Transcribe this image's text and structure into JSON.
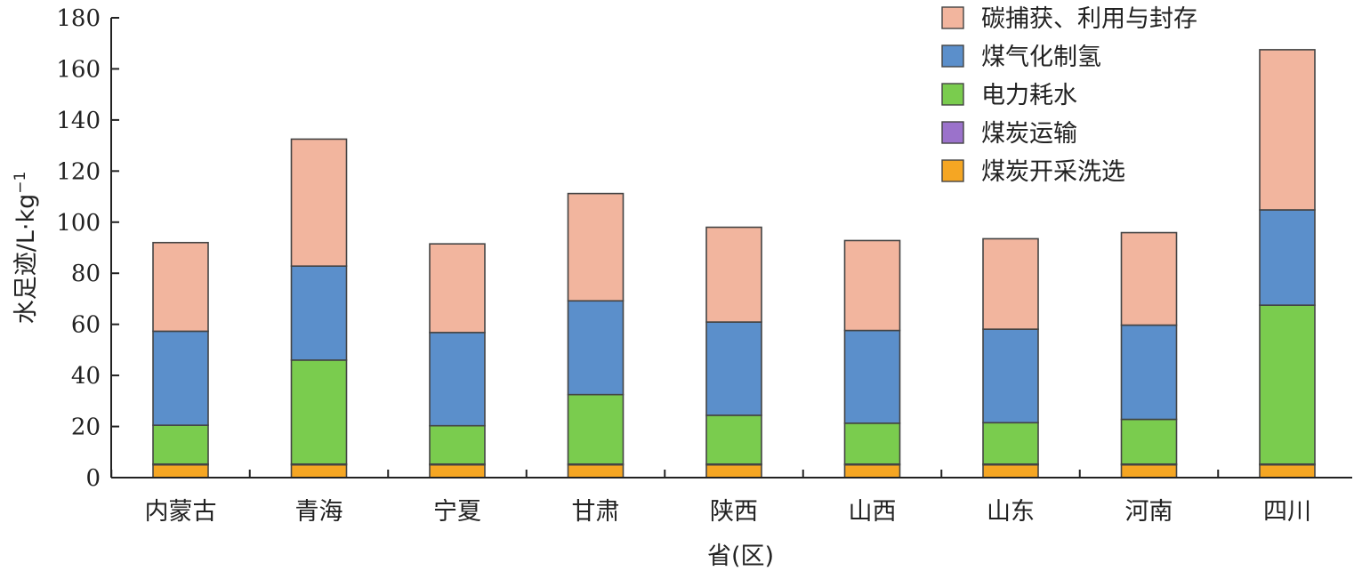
{
  "chart_data": {
    "type": "bar",
    "stacked": true,
    "title": "",
    "xlabel": "省(区)",
    "ylabel": "水足迹/L·kg",
    "ylabel_superscript": "−1",
    "ylim": [
      0,
      180
    ],
    "yticks": [
      0,
      20,
      40,
      60,
      80,
      100,
      120,
      140,
      160,
      180
    ],
    "legend_position": "top-right",
    "categories": [
      "内蒙古",
      "青海",
      "宁夏",
      "甘肃",
      "陕西",
      "山西",
      "山东",
      "河南",
      "四川"
    ],
    "series": [
      {
        "name": "煤炭开采洗选",
        "color": "#F5A623",
        "values": [
          5,
          5,
          5,
          5,
          5,
          5,
          5,
          5,
          5
        ]
      },
      {
        "name": "煤炭运输",
        "color": "#9B72CB",
        "values": [
          0.3,
          0.3,
          0.3,
          0.3,
          0.3,
          0.3,
          0.3,
          0.3,
          0.3
        ]
      },
      {
        "name": "电力耗水",
        "color": "#7ACC4E",
        "values": [
          15.2,
          40.7,
          15,
          27.2,
          19.1,
          16,
          16.2,
          17.5,
          62.2
        ]
      },
      {
        "name": "煤气化制氢",
        "color": "#5B8FCB",
        "values": [
          36.8,
          36.8,
          36.5,
          36.7,
          36.5,
          36.3,
          36.6,
          36.9,
          37.3
        ]
      },
      {
        "name": "碳捕获、利用与封存",
        "color": "#F2B59E",
        "values": [
          34.7,
          49.7,
          34.7,
          42,
          37.1,
          35.2,
          35.4,
          36.2,
          62.7
        ]
      }
    ],
    "legend_order": [
      4,
      3,
      2,
      1,
      0
    ]
  }
}
